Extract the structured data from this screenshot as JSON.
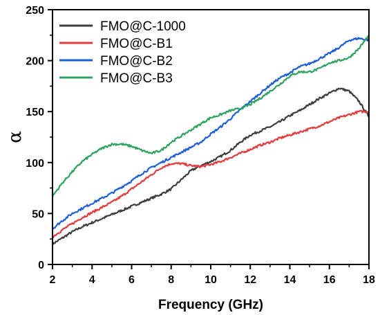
{
  "chart_data": {
    "type": "line",
    "title": "",
    "xlabel": "Frequency (GHz)",
    "ylabel": "α",
    "xlim": [
      2,
      18
    ],
    "ylim": [
      0,
      250
    ],
    "xticks": [
      2,
      4,
      6,
      8,
      10,
      12,
      14,
      16,
      18
    ],
    "yticks": [
      0,
      50,
      100,
      150,
      200,
      250
    ],
    "grid": false,
    "legend_position": "top-left",
    "series": [
      {
        "name": "FMO@C-1000",
        "color": "#3d3d3d",
        "x": [
          2,
          2.5,
          3,
          3.5,
          4,
          4.5,
          5,
          5.5,
          6,
          6.5,
          7,
          7.5,
          8,
          8.5,
          9,
          9.5,
          10,
          10.5,
          11,
          11.5,
          12,
          12.5,
          13,
          13.5,
          14,
          14.5,
          15,
          15.5,
          16,
          16.5,
          17,
          17.5,
          18
        ],
        "y": [
          20,
          26,
          32,
          37,
          41,
          45,
          49,
          53,
          57,
          61,
          65,
          69,
          74,
          83,
          92,
          97,
          101,
          106,
          112,
          120,
          127,
          131,
          135,
          140,
          146,
          151,
          157,
          163,
          168,
          173,
          170,
          160,
          145
        ]
      },
      {
        "name": "FMO@C-B1",
        "color": "#e23c3c",
        "x": [
          2,
          2.5,
          3,
          3.5,
          4,
          4.5,
          5,
          5.5,
          6,
          6.5,
          7,
          7.5,
          8,
          8.5,
          9,
          9.5,
          10,
          10.5,
          11,
          11.5,
          12,
          12.5,
          13,
          13.5,
          14,
          14.5,
          15,
          15.5,
          16,
          16.5,
          17,
          17.5,
          18
        ],
        "y": [
          27,
          34,
          40,
          46,
          51,
          56,
          61,
          67,
          74,
          81,
          88,
          95,
          99,
          99,
          97,
          96,
          98,
          101,
          105,
          109,
          113,
          117,
          120,
          124,
          127,
          130,
          133,
          136,
          140,
          144,
          147,
          150,
          150
        ]
      },
      {
        "name": "FMO@C-B2",
        "color": "#1f5fd6",
        "x": [
          2,
          2.5,
          3,
          3.5,
          4,
          4.5,
          5,
          5.5,
          6,
          6.5,
          7,
          7.5,
          8,
          8.5,
          9,
          9.5,
          10,
          10.5,
          11,
          11.5,
          12,
          12.5,
          13,
          13.5,
          14,
          14.5,
          15,
          15.5,
          16,
          16.5,
          17,
          17.5,
          18
        ],
        "y": [
          35,
          43,
          50,
          55,
          60,
          65,
          70,
          76,
          82,
          89,
          95,
          100,
          105,
          110,
          115,
          120,
          128,
          135,
          143,
          152,
          160,
          168,
          176,
          183,
          188,
          194,
          197,
          202,
          207,
          213,
          220,
          222,
          220
        ]
      },
      {
        "name": "FMO@C-B3",
        "color": "#2ea35e",
        "x": [
          2,
          2.5,
          3,
          3.5,
          4,
          4.5,
          5,
          5.5,
          6,
          6.5,
          7,
          7.5,
          8,
          8.5,
          9,
          9.5,
          10,
          10.5,
          11,
          11.5,
          12,
          12.5,
          13,
          13.5,
          14,
          14.5,
          15,
          15.5,
          16,
          16.5,
          17,
          17.5,
          18
        ],
        "y": [
          67,
          80,
          91,
          101,
          108,
          114,
          118,
          118,
          116,
          112,
          109,
          112,
          120,
          126,
          132,
          138,
          144,
          147,
          151,
          153,
          157,
          163,
          170,
          177,
          185,
          189,
          189,
          192,
          198,
          200,
          203,
          212,
          225
        ]
      }
    ]
  }
}
